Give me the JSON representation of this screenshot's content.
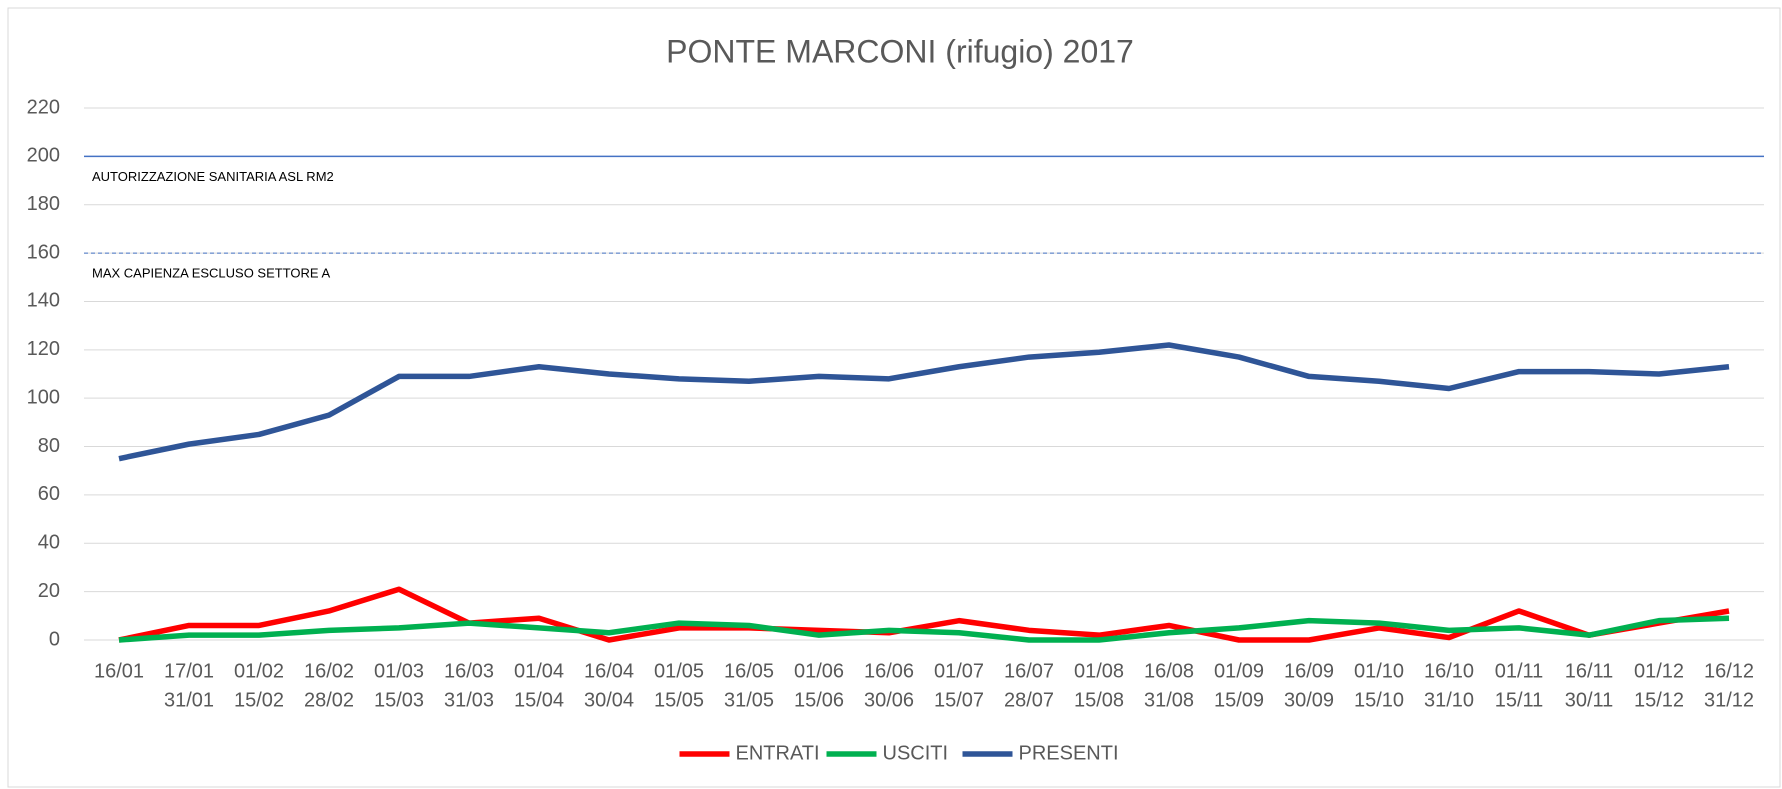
{
  "chart_data": {
    "type": "line",
    "title": "PONTE MARCONI (rifugio) 2017",
    "categories": [
      [
        "16/01"
      ],
      [
        "17/01",
        "31/01"
      ],
      [
        "01/02",
        "15/02"
      ],
      [
        "16/02",
        "28/02"
      ],
      [
        "01/03",
        "15/03"
      ],
      [
        "16/03",
        "31/03"
      ],
      [
        "01/04",
        "15/04"
      ],
      [
        "16/04",
        "30/04"
      ],
      [
        "01/05",
        "15/05"
      ],
      [
        "16/05",
        "31/05"
      ],
      [
        "01/06",
        "15/06"
      ],
      [
        "16/06",
        "30/06"
      ],
      [
        "01/07",
        "15/07"
      ],
      [
        "16/07",
        "28/07"
      ],
      [
        "01/08",
        "15/08"
      ],
      [
        "16/08",
        "31/08"
      ],
      [
        "01/09",
        "15/09"
      ],
      [
        "16/09",
        "30/09"
      ],
      [
        "01/10",
        "15/10"
      ],
      [
        "16/10",
        "31/10"
      ],
      [
        "01/11",
        "15/11"
      ],
      [
        "16/11",
        "30/11"
      ],
      [
        "01/12",
        "15/12"
      ],
      [
        "16/12",
        "31/12"
      ]
    ],
    "series": [
      {
        "name": "ENTRATI",
        "color": "#ff0000",
        "values": [
          0,
          6,
          6,
          12,
          21,
          7,
          9,
          0,
          5,
          5,
          4,
          3,
          8,
          4,
          2,
          6,
          0,
          0,
          5,
          1,
          12,
          2,
          7,
          12
        ]
      },
      {
        "name": "USCITI",
        "color": "#00b050",
        "values": [
          0,
          2,
          2,
          4,
          5,
          7,
          5,
          3,
          7,
          6,
          2,
          4,
          3,
          0,
          0,
          3,
          5,
          8,
          7,
          4,
          5,
          2,
          8,
          9
        ]
      },
      {
        "name": "PRESENTI",
        "color": "#2f5597",
        "values": [
          75,
          81,
          85,
          93,
          109,
          109,
          113,
          110,
          108,
          107,
          109,
          108,
          113,
          117,
          119,
          122,
          117,
          109,
          107,
          104,
          111,
          111,
          110,
          113
        ]
      }
    ],
    "reference_lines": [
      {
        "value": 200,
        "label": "AUTORIZZAZIONE SANITARIA ASL RM2",
        "style": "solid",
        "color": "#4472c4"
      },
      {
        "value": 160,
        "label": "MAX CAPIENZA ESCLUSO SETTORE A",
        "style": "dashed",
        "color": "#4472c4"
      }
    ],
    "ylim": [
      0,
      220
    ],
    "yticks": [
      0,
      20,
      40,
      60,
      80,
      100,
      120,
      140,
      160,
      180,
      200,
      220
    ],
    "grid": true,
    "legend": "bottom"
  }
}
